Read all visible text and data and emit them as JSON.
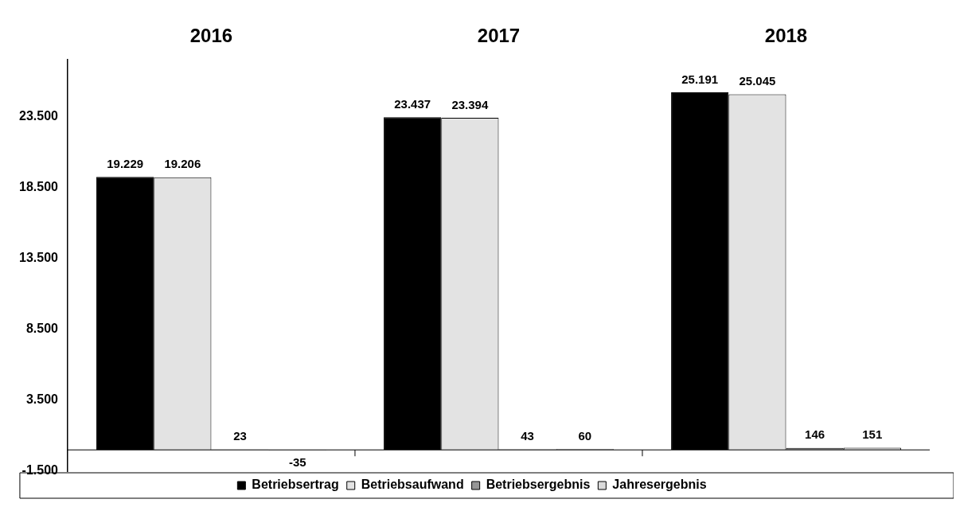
{
  "chart_data": {
    "type": "bar",
    "categories": [
      "2016",
      "2017",
      "2018"
    ],
    "series": [
      {
        "name": "Betriebsertrag",
        "color": "#000000",
        "values": [
          19229,
          23437,
          25191
        ],
        "value_labels": [
          "19.229",
          "23.437",
          "25.191"
        ]
      },
      {
        "name": "Betriebsaufwand",
        "color": "#e3e3e3",
        "values": [
          19206,
          23394,
          25045
        ],
        "value_labels": [
          "19.206",
          "23.394",
          "25.045"
        ]
      },
      {
        "name": "Betriebsergebnis",
        "color": "#969696",
        "values": [
          23,
          43,
          146
        ],
        "value_labels": [
          "23",
          "43",
          "146"
        ]
      },
      {
        "name": "Jahresergebnis",
        "color": "#dadada",
        "values": [
          -35,
          60,
          151
        ],
        "value_labels": [
          "-35",
          "60",
          "151"
        ]
      }
    ],
    "ylim": [
      -1500,
      27500
    ],
    "yticks": [
      {
        "value": -1500,
        "label": "-1.500"
      },
      {
        "value": 3500,
        "label": "3.500"
      },
      {
        "value": 8500,
        "label": "8.500"
      },
      {
        "value": 13500,
        "label": "13.500"
      },
      {
        "value": 18500,
        "label": "18.500"
      },
      {
        "value": 23500,
        "label": "23.500"
      }
    ],
    "grid": false,
    "legend": "bottom"
  }
}
